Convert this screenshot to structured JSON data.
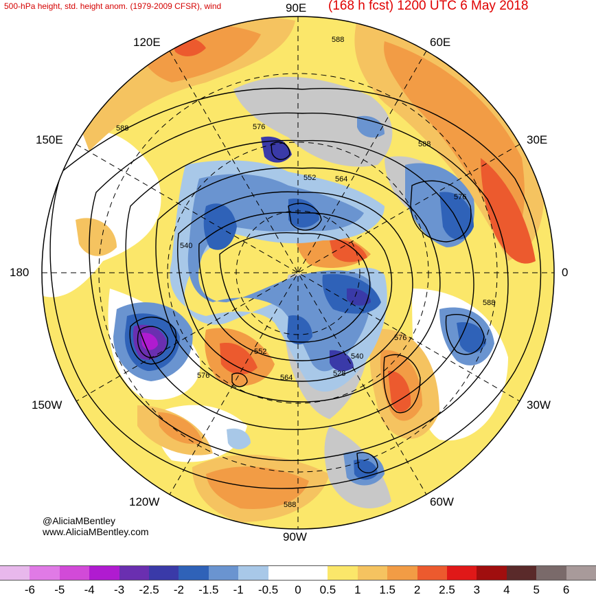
{
  "header": {
    "left_title": "500-hPa height, std. height anom. (1979-2009 CFSR), wind",
    "right_title": "(168 h fcst) 1200 UTC 6 May 2018"
  },
  "credits": {
    "handle": "@AliciaMBentley",
    "website": "www.AliciaMBentley.com"
  },
  "longitude_labels": {
    "n90e": "90E",
    "n60e": "60E",
    "n30e": "30E",
    "n0": "0",
    "n30w": "30W",
    "n60w": "60W",
    "n90w": "90W",
    "n120w": "120W",
    "n150w": "150W",
    "n180": "180",
    "n150e": "150E",
    "n120e": "120E"
  },
  "contour_labels": {
    "c588a": "588",
    "c588b": "588",
    "c588c": "588",
    "c588d": "588",
    "c588e": "588",
    "c576a": "576",
    "c576b": "576",
    "c576c": "576",
    "c576d": "576",
    "c564a": "564",
    "c564b": "564",
    "c552a": "552",
    "c552b": "552",
    "c540a": "540",
    "c540b": "540",
    "c528": "528"
  },
  "colors": {
    "map_background": "#ffffff",
    "land_gray": "#c8c8c8",
    "header_red": "#e00000"
  },
  "colorbar": {
    "ticks": [
      "-6",
      "-5",
      "-4",
      "-3",
      "-2.5",
      "-2",
      "-1.5",
      "-1",
      "-0.5",
      "0",
      "0.5",
      "1",
      "1.5",
      "2",
      "2.5",
      "3",
      "4",
      "5",
      "6"
    ],
    "colors": [
      "#e8b8ec",
      "#e07ae6",
      "#d24ad8",
      "#b01bd0",
      "#6a2fb0",
      "#3a3aa8",
      "#2f62b8",
      "#6a94d0",
      "#a8c8e8",
      "#ffffff",
      "#ffffff",
      "#fbe76a",
      "#f5c360",
      "#f29c45",
      "#ec5a2e",
      "#e01818",
      "#a00e0e",
      "#5a2a2a",
      "#7a6a6a",
      "#a89a9a"
    ]
  }
}
